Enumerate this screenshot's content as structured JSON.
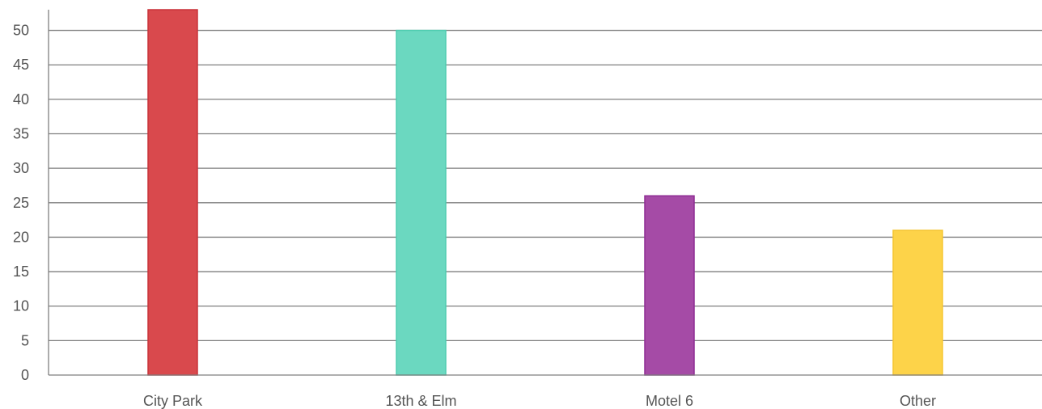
{
  "chart_data": {
    "type": "bar",
    "title": "",
    "xlabel": "",
    "ylabel": "",
    "categories": [
      "City Park",
      "13th & Elm",
      "Motel 6",
      "Other"
    ],
    "values": [
      53,
      50,
      26,
      21
    ],
    "colors": [
      "#d9494d",
      "#6bd8c0",
      "#a54ba6",
      "#fdd349"
    ],
    "border_colors": [
      "#c9333a",
      "#4fccb0",
      "#8e2d94",
      "#f5c633"
    ],
    "ylim": [
      0,
      53
    ],
    "yticks": [
      0,
      5,
      10,
      15,
      20,
      25,
      30,
      35,
      40,
      45,
      50
    ],
    "grid": true,
    "grid_color": "#7f7f7f",
    "legend": "none"
  }
}
